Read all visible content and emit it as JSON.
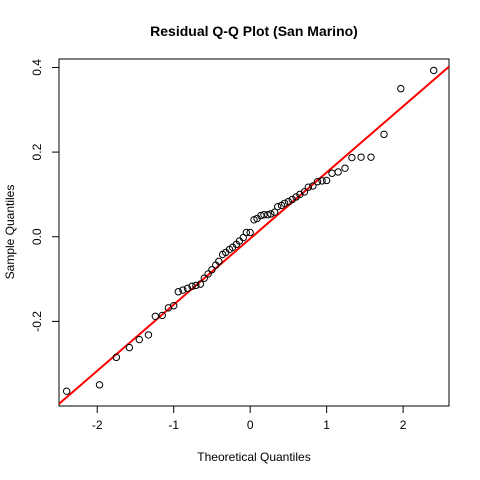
{
  "chart_data": {
    "type": "scatter",
    "title": "Residual Q-Q Plot (San Marino)",
    "xlabel": "Theoretical Quantiles",
    "ylabel": "Sample Quantiles",
    "xlim": [
      -2.5,
      2.6
    ],
    "ylim": [
      -0.4,
      0.42
    ],
    "x_ticks": [
      -2,
      -1,
      0,
      1,
      2
    ],
    "x_tick_labels": [
      "-2",
      "-1",
      "0",
      "1",
      "2"
    ],
    "y_ticks": [
      -0.2,
      0.0,
      0.2,
      0.4
    ],
    "y_tick_labels": [
      "-0.2",
      "0.0",
      "0.2",
      "0.4"
    ],
    "grid": false,
    "reference_line": {
      "color": "#ff0000",
      "x": [
        -2.5,
        2.6
      ],
      "y": [
        -0.395,
        0.402
      ]
    },
    "points": {
      "marker": "open-circle",
      "color": "#000000",
      "x": [
        -2.4,
        -1.97,
        -1.75,
        -1.58,
        -1.45,
        -1.33,
        -1.24,
        -1.15,
        -1.07,
        -1.0,
        -0.94,
        -0.88,
        -0.82,
        -0.76,
        -0.71,
        -0.65,
        -0.6,
        -0.55,
        -0.5,
        -0.45,
        -0.41,
        -0.36,
        -0.32,
        -0.27,
        -0.23,
        -0.18,
        -0.14,
        -0.09,
        -0.05,
        0.0,
        0.05,
        0.09,
        0.14,
        0.18,
        0.23,
        0.27,
        0.32,
        0.36,
        0.41,
        0.45,
        0.5,
        0.55,
        0.6,
        0.65,
        0.71,
        0.76,
        0.82,
        0.88,
        0.94,
        1.0,
        1.07,
        1.15,
        1.24,
        1.33,
        1.45,
        1.58,
        1.75,
        1.97,
        2.4
      ],
      "y": [
        -0.365,
        -0.35,
        -0.285,
        -0.262,
        -0.243,
        -0.232,
        -0.188,
        -0.186,
        -0.168,
        -0.163,
        -0.13,
        -0.126,
        -0.122,
        -0.117,
        -0.115,
        -0.112,
        -0.098,
        -0.088,
        -0.078,
        -0.067,
        -0.058,
        -0.042,
        -0.037,
        -0.03,
        -0.025,
        -0.018,
        -0.01,
        -0.002,
        0.01,
        0.01,
        0.04,
        0.043,
        0.05,
        0.052,
        0.052,
        0.054,
        0.058,
        0.071,
        0.074,
        0.079,
        0.083,
        0.088,
        0.094,
        0.1,
        0.106,
        0.117,
        0.12,
        0.13,
        0.132,
        0.133,
        0.15,
        0.153,
        0.162,
        0.187,
        0.188,
        0.188,
        0.242,
        0.35,
        0.393
      ]
    }
  }
}
